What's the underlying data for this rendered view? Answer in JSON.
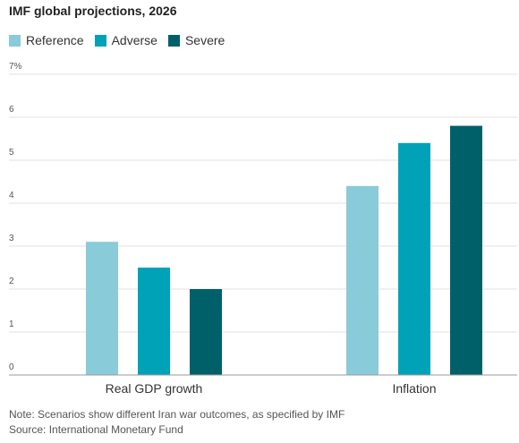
{
  "chart_data": {
    "type": "bar",
    "title": "IMF global projections, 2026",
    "xlabel": "",
    "ylabel": "",
    "categories": [
      "Real GDP growth",
      "Inflation"
    ],
    "series": [
      {
        "name": "Reference",
        "color": "#89cbd9",
        "values": [
          3.1,
          4.4
        ]
      },
      {
        "name": "Adverse",
        "color": "#00a2b8",
        "values": [
          2.5,
          5.4
        ]
      },
      {
        "name": "Severe",
        "color": "#00606a",
        "values": [
          2.0,
          5.8
        ]
      }
    ],
    "ylim": [
      0,
      7
    ],
    "yticks": [
      "0",
      "1",
      "2",
      "3",
      "4",
      "5",
      "6",
      "7%"
    ],
    "grid": true,
    "legend": "top-left"
  },
  "notes": {
    "note": "Note: Scenarios show different Iran war outcomes, as specified by IMF",
    "source": "Source: International Monetary Fund"
  }
}
